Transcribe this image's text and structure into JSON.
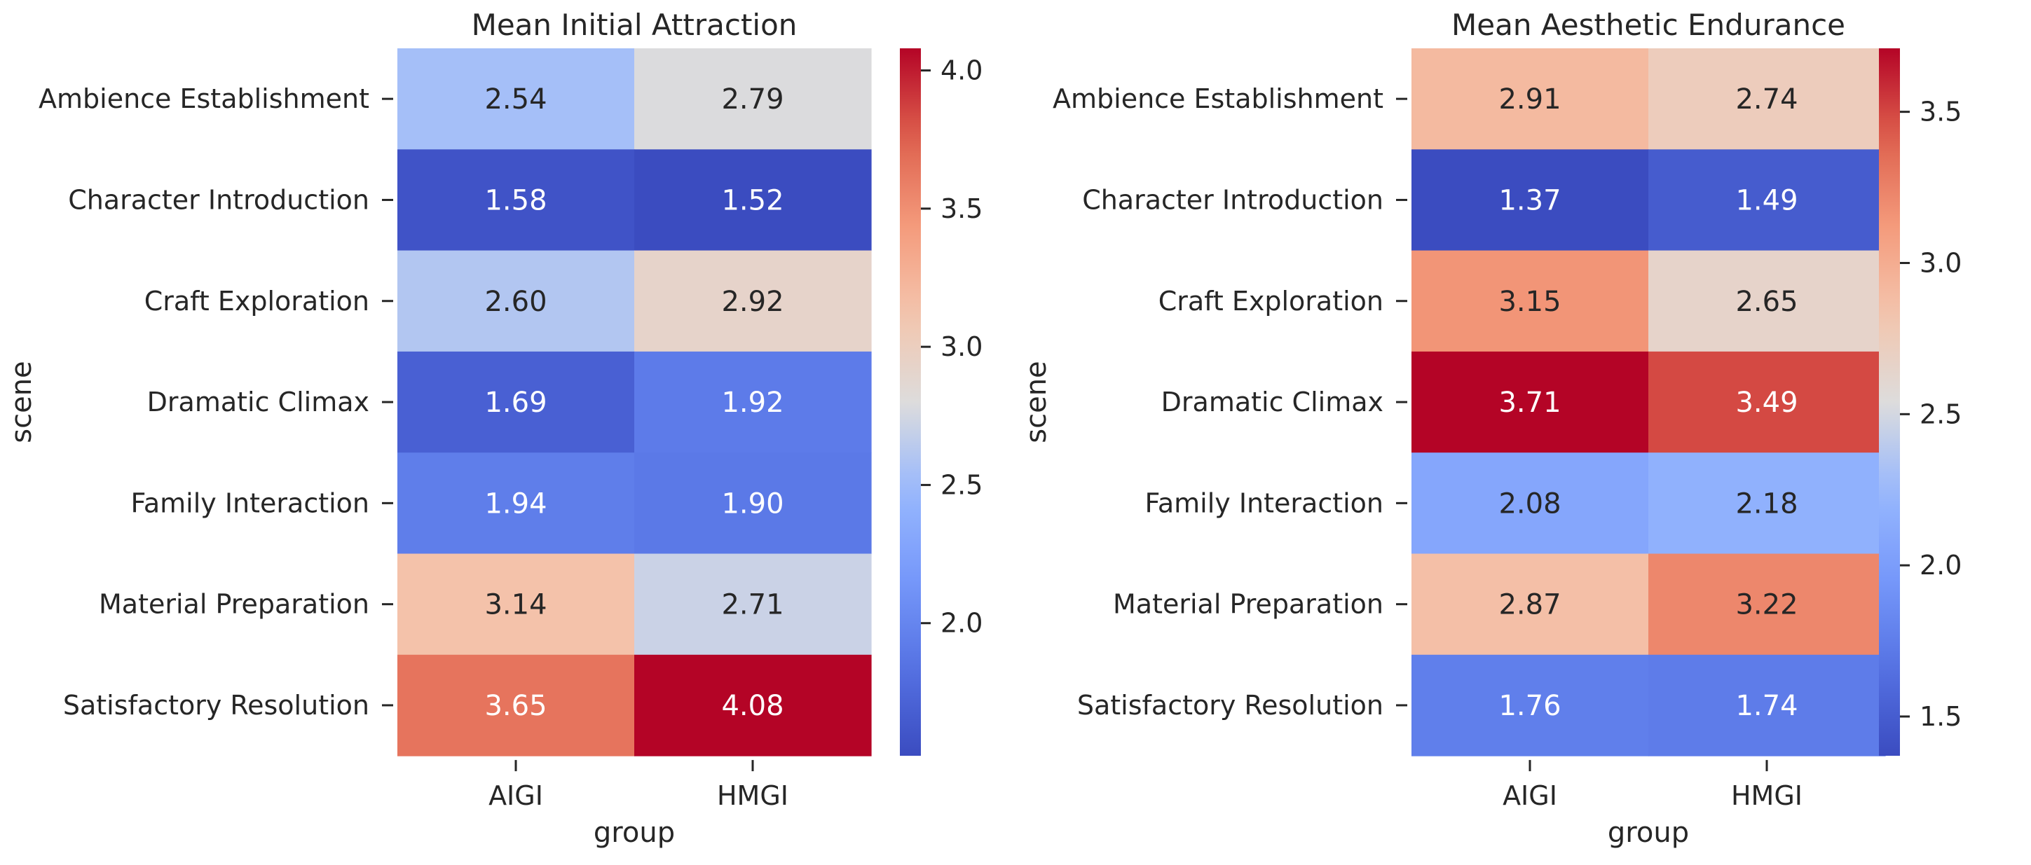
{
  "chart_data": [
    {
      "type": "heatmap",
      "title": "Mean Initial Attraction",
      "xlabel": "group",
      "ylabel": "scene",
      "x_categories": [
        "AIGI",
        "HMGI"
      ],
      "y_categories": [
        "Ambience Establishment",
        "Character Introduction",
        "Craft Exploration",
        "Dramatic Climax",
        "Family Interaction",
        "Material Preparation",
        "Satisfactory Resolution"
      ],
      "values": [
        [
          2.54,
          2.79
        ],
        [
          1.58,
          1.52
        ],
        [
          2.6,
          2.92
        ],
        [
          1.69,
          1.92
        ],
        [
          1.94,
          1.9
        ],
        [
          3.14,
          2.71
        ],
        [
          3.65,
          4.08
        ]
      ],
      "value_format": "0.00",
      "colormap": "coolwarm",
      "color_range": [
        1.52,
        4.08
      ],
      "colorbar_ticks": [
        2.0,
        2.5,
        3.0,
        3.5,
        4.0
      ],
      "colorbar_tick_labels": [
        "2.0",
        "2.5",
        "3.0",
        "3.5",
        "4.0"
      ]
    },
    {
      "type": "heatmap",
      "title": "Mean Aesthetic Endurance",
      "xlabel": "group",
      "ylabel": "scene",
      "x_categories": [
        "AIGI",
        "HMGI"
      ],
      "y_categories": [
        "Ambience Establishment",
        "Character Introduction",
        "Craft Exploration",
        "Dramatic Climax",
        "Family Interaction",
        "Material Preparation",
        "Satisfactory Resolution"
      ],
      "values": [
        [
          2.91,
          2.74
        ],
        [
          1.37,
          1.49
        ],
        [
          3.15,
          2.65
        ],
        [
          3.71,
          3.49
        ],
        [
          2.08,
          2.18
        ],
        [
          2.87,
          3.22
        ],
        [
          1.76,
          1.74
        ]
      ],
      "value_format": "0.00",
      "colormap": "coolwarm",
      "color_range": [
        1.37,
        3.71
      ],
      "colorbar_ticks": [
        1.5,
        2.0,
        2.5,
        3.0,
        3.5
      ],
      "colorbar_tick_labels": [
        "1.5",
        "2.0",
        "2.5",
        "3.0",
        "3.5"
      ]
    }
  ],
  "colors": {
    "cold_end": "#3b4cc0",
    "neutral": "#dddcdc",
    "warm_end": "#b40426",
    "axis_text": "#262626"
  }
}
